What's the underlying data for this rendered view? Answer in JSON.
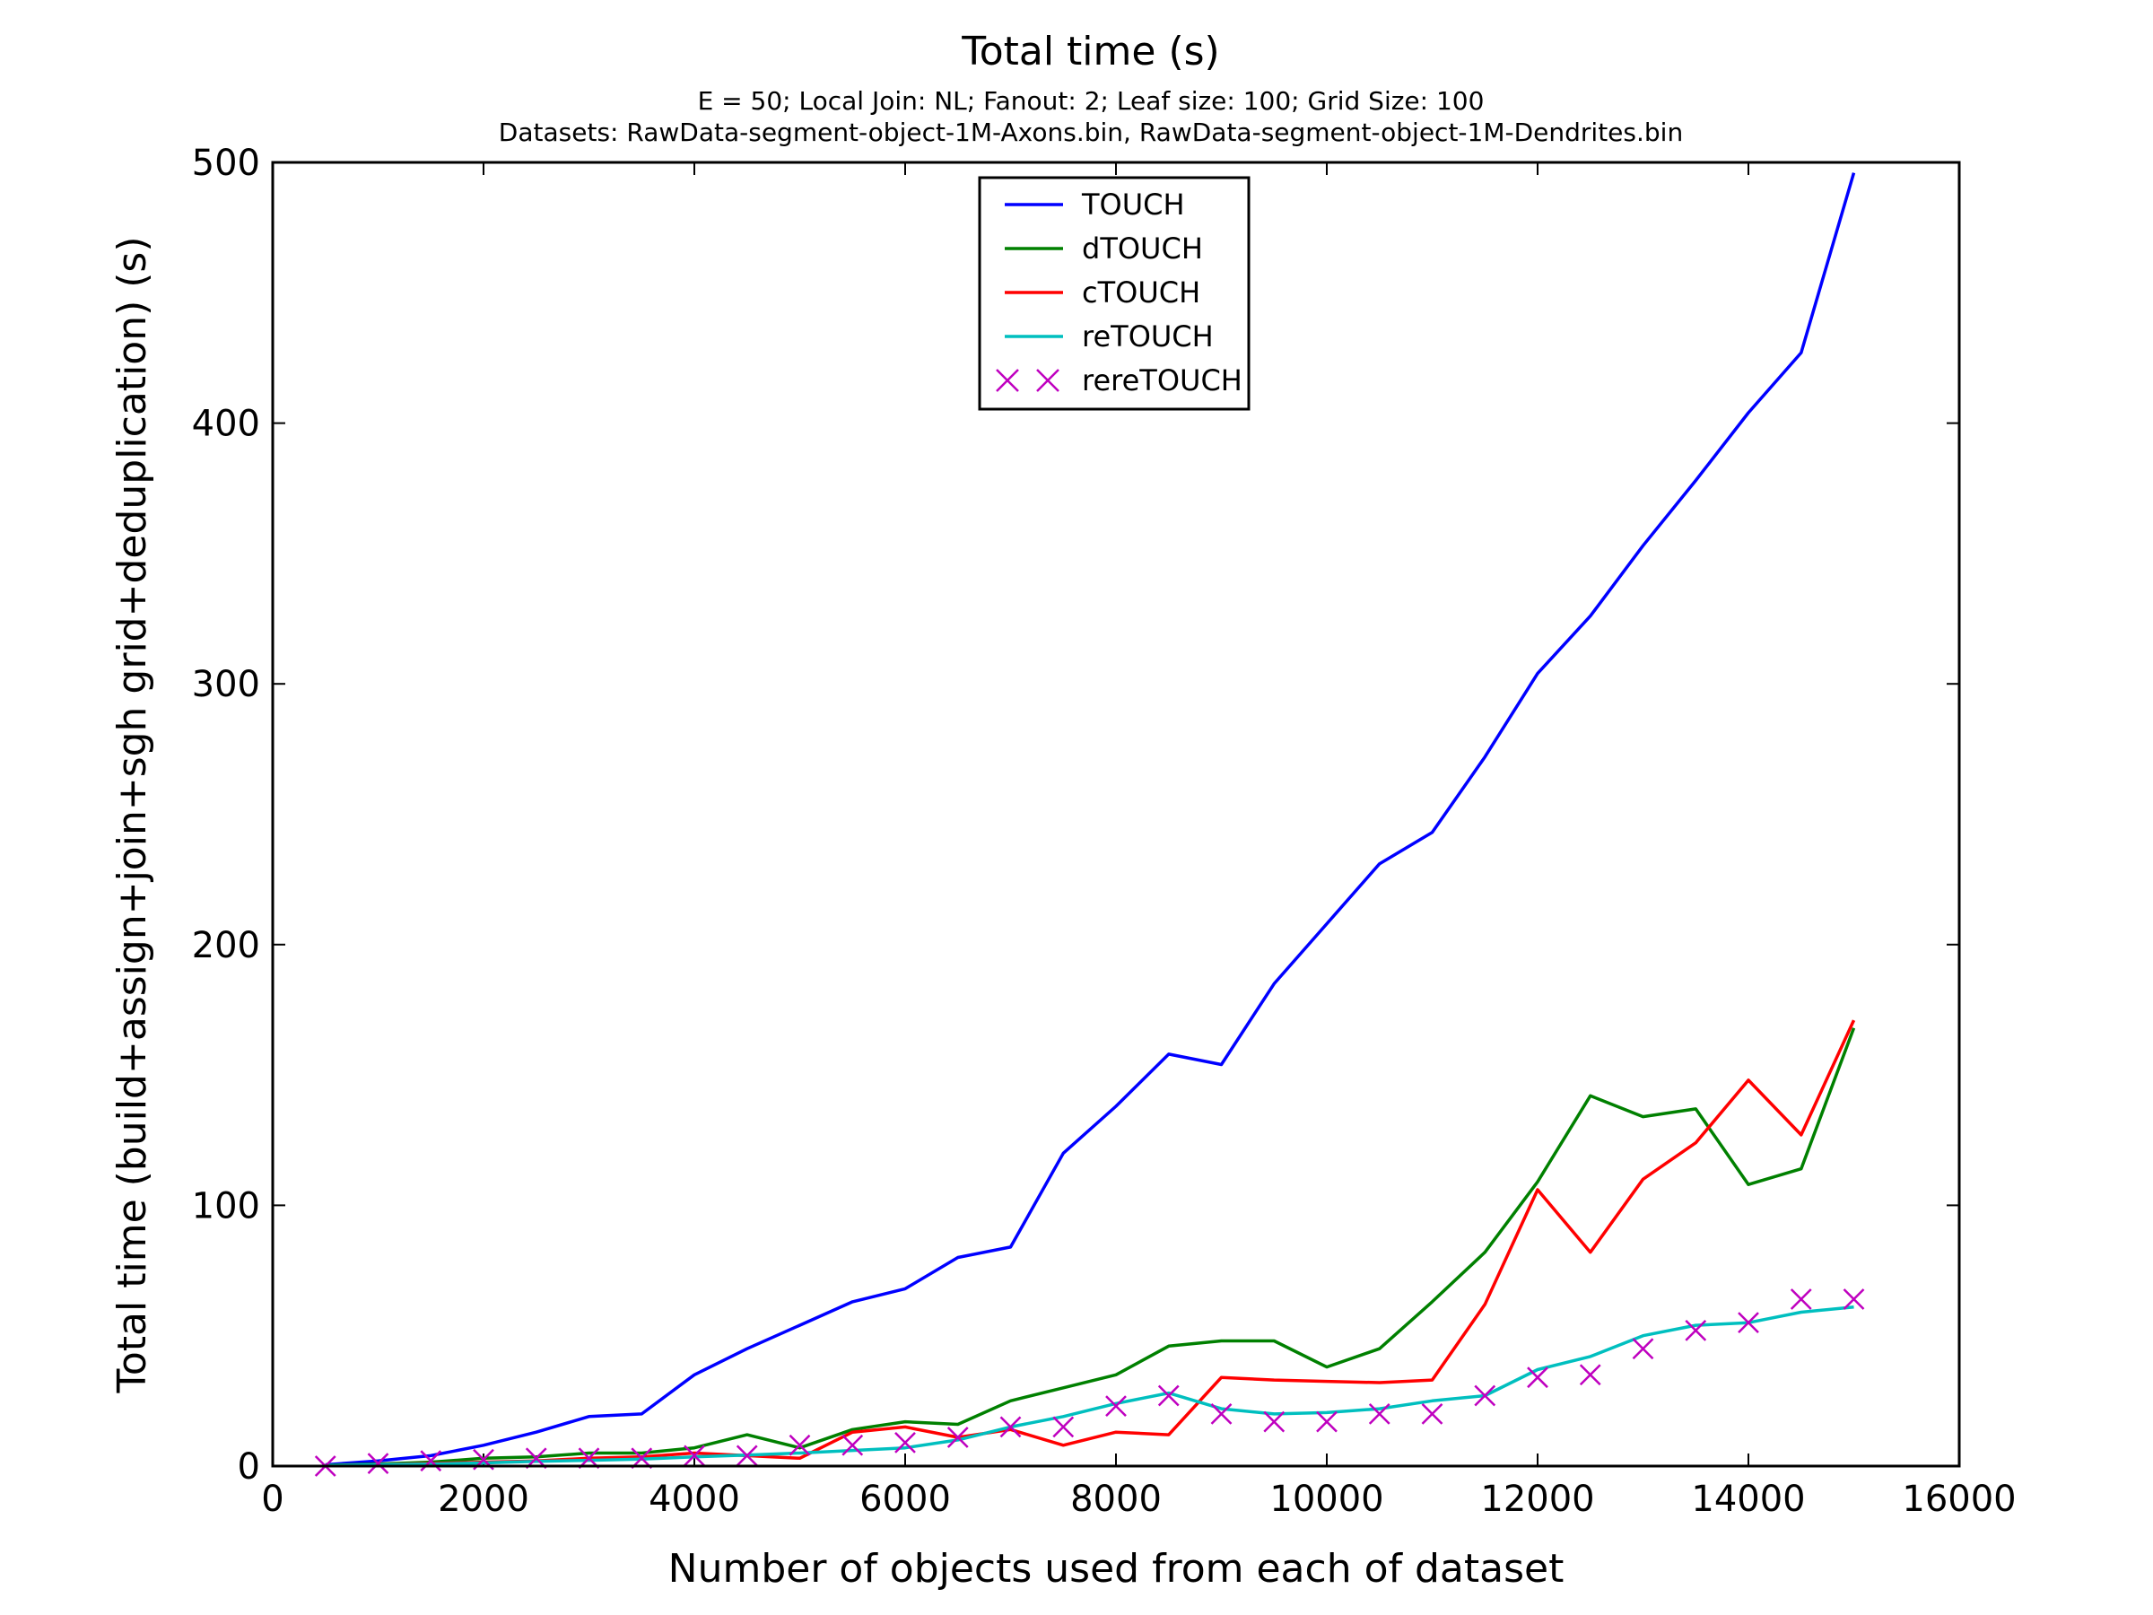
{
  "chart_data": {
    "type": "line",
    "title": "Total time (s)",
    "subtitle_lines": [
      "E = 50; Local Join: NL; Fanout: 2; Leaf size: 100; Grid Size: 100",
      "Datasets: RawData-segment-object-1M-Axons.bin, RawData-segment-object-1M-Dendrites.bin"
    ],
    "xlabel": "Number of objects used from each of dataset",
    "ylabel": "Total time (build+assign+join+sgh grid+deduplication) (s)",
    "xlim": [
      0,
      16000
    ],
    "ylim": [
      0,
      500
    ],
    "xticks": [
      "0",
      "2000",
      "4000",
      "6000",
      "8000",
      "10000",
      "12000",
      "14000",
      "16000"
    ],
    "yticks": [
      "0",
      "100",
      "200",
      "300",
      "400",
      "500"
    ],
    "grid": false,
    "legend_position": "top-center",
    "x": [
      500,
      1000,
      1500,
      2000,
      2500,
      3000,
      3500,
      4000,
      4500,
      5000,
      5500,
      6000,
      6500,
      7000,
      7500,
      8000,
      8500,
      9000,
      9500,
      10000,
      10500,
      11000,
      11500,
      12000,
      12500,
      13000,
      13500,
      14000,
      14500,
      15000
    ],
    "series": [
      {
        "name": "TOUCH",
        "color": "#0000ff",
        "style": "line",
        "values": [
          0.5,
          2,
          4,
          8,
          13,
          19,
          20,
          35,
          45,
          54,
          63,
          68,
          80,
          84,
          120,
          138,
          158,
          154,
          185,
          208,
          231,
          243,
          272,
          304,
          326,
          353,
          378,
          404,
          427,
          496
        ]
      },
      {
        "name": "dTOUCH",
        "color": "#008000",
        "style": "line",
        "values": [
          0.3,
          0.8,
          1.5,
          3,
          3.5,
          5,
          5,
          7,
          12,
          7,
          14,
          17,
          16,
          25,
          30,
          35,
          46,
          48,
          48,
          38,
          45,
          63,
          82,
          109,
          142,
          134,
          137,
          108,
          114,
          168
        ]
      },
      {
        "name": "cTOUCH",
        "color": "#ff0000",
        "style": "line",
        "values": [
          0.2,
          0.5,
          1,
          1.5,
          2,
          3,
          3.5,
          5,
          4,
          3,
          13,
          15,
          11,
          14,
          8,
          13,
          12,
          34,
          33,
          32.5,
          32,
          33,
          62,
          106,
          82,
          110,
          124,
          148,
          127,
          171
        ]
      },
      {
        "name": "reTOUCH",
        "color": "#00bfbf",
        "style": "line",
        "values": [
          0.2,
          0.5,
          0.8,
          1.2,
          1.8,
          2.2,
          2.7,
          3.5,
          4.2,
          5,
          6,
          7,
          10,
          15,
          19,
          24,
          28,
          22,
          20,
          20.5,
          22,
          25,
          27,
          37,
          42,
          50,
          54,
          55,
          59,
          61
        ]
      },
      {
        "name": "rereTOUCH",
        "color": "#bf00bf",
        "style": "marker-x",
        "values": [
          0,
          1,
          2,
          2.5,
          3,
          3,
          3,
          4,
          4,
          8,
          8,
          9,
          11,
          15,
          15,
          23,
          27,
          20,
          17,
          17,
          20,
          20,
          27,
          34,
          35,
          45,
          52,
          55,
          64,
          64
        ]
      }
    ]
  }
}
